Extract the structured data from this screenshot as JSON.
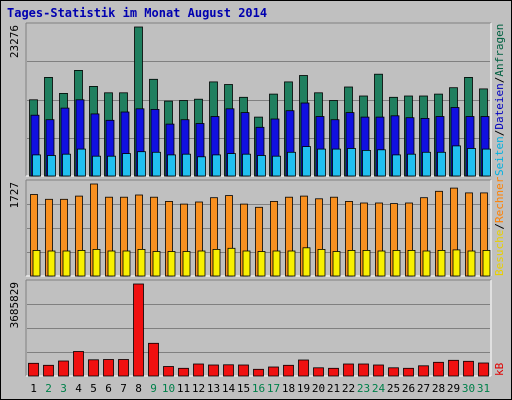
{
  "title": "Tages-Statistik im Monat August 2014",
  "chart_data": {
    "type": "bar",
    "categories": [
      "1",
      "2",
      "3",
      "4",
      "5",
      "6",
      "7",
      "8",
      "9",
      "10",
      "11",
      "12",
      "13",
      "14",
      "15",
      "16",
      "17",
      "18",
      "19",
      "20",
      "21",
      "22",
      "23",
      "24",
      "25",
      "26",
      "27",
      "28",
      "29",
      "30",
      "31"
    ],
    "weekend_days": [
      "2",
      "3",
      "9",
      "10",
      "16",
      "17",
      "23",
      "24",
      "30",
      "31"
    ],
    "panels": [
      {
        "axis_max_label": "23276",
        "ymax": 23276,
        "right_labels": [
          {
            "text": "Anfragen",
            "color": "#006040"
          },
          {
            "text": "/",
            "color": "#000000"
          },
          {
            "text": "Dateien",
            "color": "#0000c0"
          },
          {
            "text": "/",
            "color": "#000000"
          },
          {
            "text": "Seiten",
            "color": "#00b0e0"
          }
        ],
        "series": [
          {
            "name": "Anfragen",
            "color": "#1f7f5f",
            "values": [
              11900,
              15400,
              12900,
              16500,
              14000,
              13000,
              13000,
              23276,
              15100,
              11700,
              11800,
              12000,
              14700,
              14300,
              12300,
              9200,
              12800,
              14700,
              15700,
              13000,
              11800,
              13900,
              12500,
              15900,
              12300,
              12500,
              12500,
              12800,
              13800,
              15400,
              13600
            ]
          },
          {
            "name": "Dateien",
            "color": "#1010e0",
            "values": [
              9500,
              8800,
              10600,
              11900,
              9700,
              8700,
              10000,
              10500,
              10400,
              8100,
              8800,
              8200,
              9300,
              10500,
              9900,
              7600,
              8900,
              10200,
              11400,
              9300,
              8800,
              9900,
              9200,
              9200,
              9400,
              9100,
              9000,
              9300,
              10700,
              9300,
              9300
            ]
          },
          {
            "name": "Seiten",
            "color": "#20c0f0",
            "values": [
              3300,
              3200,
              3400,
              4200,
              3100,
              3100,
              3500,
              3800,
              3700,
              3300,
              3400,
              3000,
              3300,
              3500,
              3400,
              3200,
              3100,
              3700,
              4600,
              4200,
              4200,
              4300,
              4000,
              4100,
              3300,
              3400,
              3700,
              3700,
              4700,
              4300,
              4200
            ]
          }
        ]
      },
      {
        "axis_max_label": "1727",
        "ymax": 1727,
        "right_labels": [
          {
            "text": "Rechner",
            "color": "#ff8000"
          },
          {
            "text": "/",
            "color": "#000000"
          },
          {
            "text": "Besuche",
            "color": "#e8d000"
          }
        ],
        "series": [
          {
            "name": "Rechner",
            "color": "#f89020",
            "values": [
              1530,
              1440,
              1440,
              1500,
              1727,
              1480,
              1480,
              1520,
              1480,
              1400,
              1350,
              1390,
              1470,
              1510,
              1350,
              1290,
              1400,
              1480,
              1500,
              1450,
              1480,
              1400,
              1370,
              1370,
              1360,
              1370,
              1470,
              1590,
              1650,
              1560,
              1560
            ]
          },
          {
            "name": "Besuche",
            "color": "#f8f000",
            "values": [
              480,
              470,
              470,
              480,
              500,
              470,
              470,
              500,
              460,
              460,
              460,
              470,
              500,
              520,
              470,
              460,
              470,
              470,
              530,
              500,
              460,
              480,
              480,
              470,
              480,
              480,
              470,
              480,
              490,
              470,
              480
            ]
          }
        ]
      },
      {
        "axis_max_label": "3685829",
        "ymax": 3685829,
        "right_labels": [
          {
            "text": "kB",
            "color": "#e00000"
          }
        ],
        "series": [
          {
            "name": "kB",
            "color": "#f01010",
            "values": [
              510000,
              430000,
              600000,
              980000,
              650000,
              660000,
              660000,
              3685829,
              1310000,
              380000,
              310000,
              480000,
              440000,
              450000,
              440000,
              270000,
              360000,
              430000,
              640000,
              330000,
              310000,
              480000,
              480000,
              440000,
              330000,
              310000,
              410000,
              550000,
              630000,
              590000,
              520000
            ]
          }
        ]
      }
    ]
  }
}
